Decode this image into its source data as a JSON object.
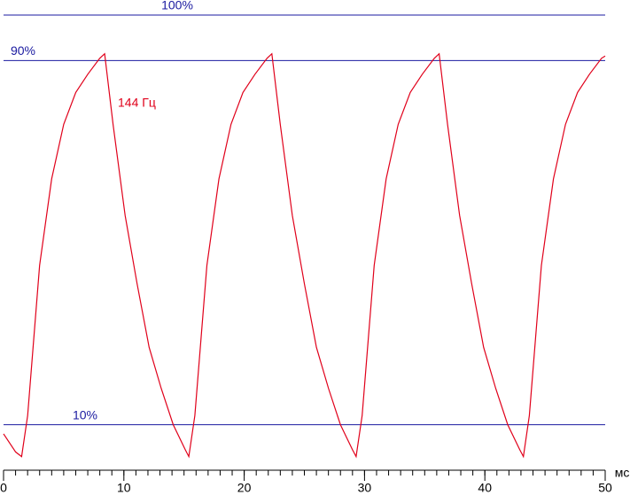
{
  "chart_data": {
    "type": "line",
    "x_label": "мс",
    "x": [
      0,
      1,
      1.5,
      2,
      3,
      4,
      5,
      6,
      7,
      8,
      8.4,
      9.1,
      10.1,
      11.1,
      12.1,
      13.1,
      14.1,
      15.1,
      15.4,
      15.9,
      16.9,
      17.9,
      18.9,
      19.9,
      20.9,
      21.9,
      22.3,
      23,
      24,
      25,
      26,
      27,
      28,
      29,
      29.3,
      29.8,
      30.8,
      31.8,
      32.8,
      33.8,
      34.8,
      35.8,
      36.2,
      36.9,
      37.9,
      38.9,
      39.9,
      40.9,
      41.9,
      42.9,
      43.2,
      43.7,
      44.7,
      45.7,
      46.7,
      47.7,
      48.7,
      49.7,
      50
    ],
    "series": [
      {
        "name": "144 Гц",
        "color": "#e0001a",
        "values": [
          8,
          4,
          3,
          12,
          45,
          64,
          76,
          83,
          87,
          90.5,
          91.5,
          76,
          56,
          41,
          27,
          18,
          10,
          4.5,
          3,
          12,
          45,
          64,
          76,
          83,
          87,
          90.5,
          91.5,
          76,
          56,
          41,
          27,
          18,
          10,
          4.5,
          3,
          12,
          45,
          64,
          76,
          83,
          87,
          90.5,
          91.5,
          76,
          56,
          41,
          27,
          18,
          10,
          4.5,
          3,
          12,
          45,
          64,
          76,
          83,
          87,
          90.5,
          91
        ]
      }
    ],
    "reference_lines": [
      {
        "value": 100,
        "label": "100%"
      },
      {
        "value": 90,
        "label": "90%"
      },
      {
        "value": 10,
        "label": "10%"
      }
    ],
    "reference_color": "#1a1aa0",
    "xlim": [
      0,
      50
    ],
    "ylim": [
      0,
      100
    ],
    "xticks": [
      0,
      10,
      20,
      30,
      40,
      50
    ],
    "xminorticks": [
      0,
      1,
      2,
      3,
      4,
      5,
      6,
      7,
      8,
      9,
      10,
      11,
      12,
      13,
      14,
      15,
      16,
      17,
      18,
      19,
      20,
      21,
      22,
      23,
      24,
      25,
      26,
      27,
      28,
      29,
      30,
      31,
      32,
      33,
      34,
      35,
      36,
      37,
      38,
      39,
      40,
      41,
      42,
      43,
      44,
      45,
      46,
      47,
      48,
      49,
      50
    ]
  }
}
